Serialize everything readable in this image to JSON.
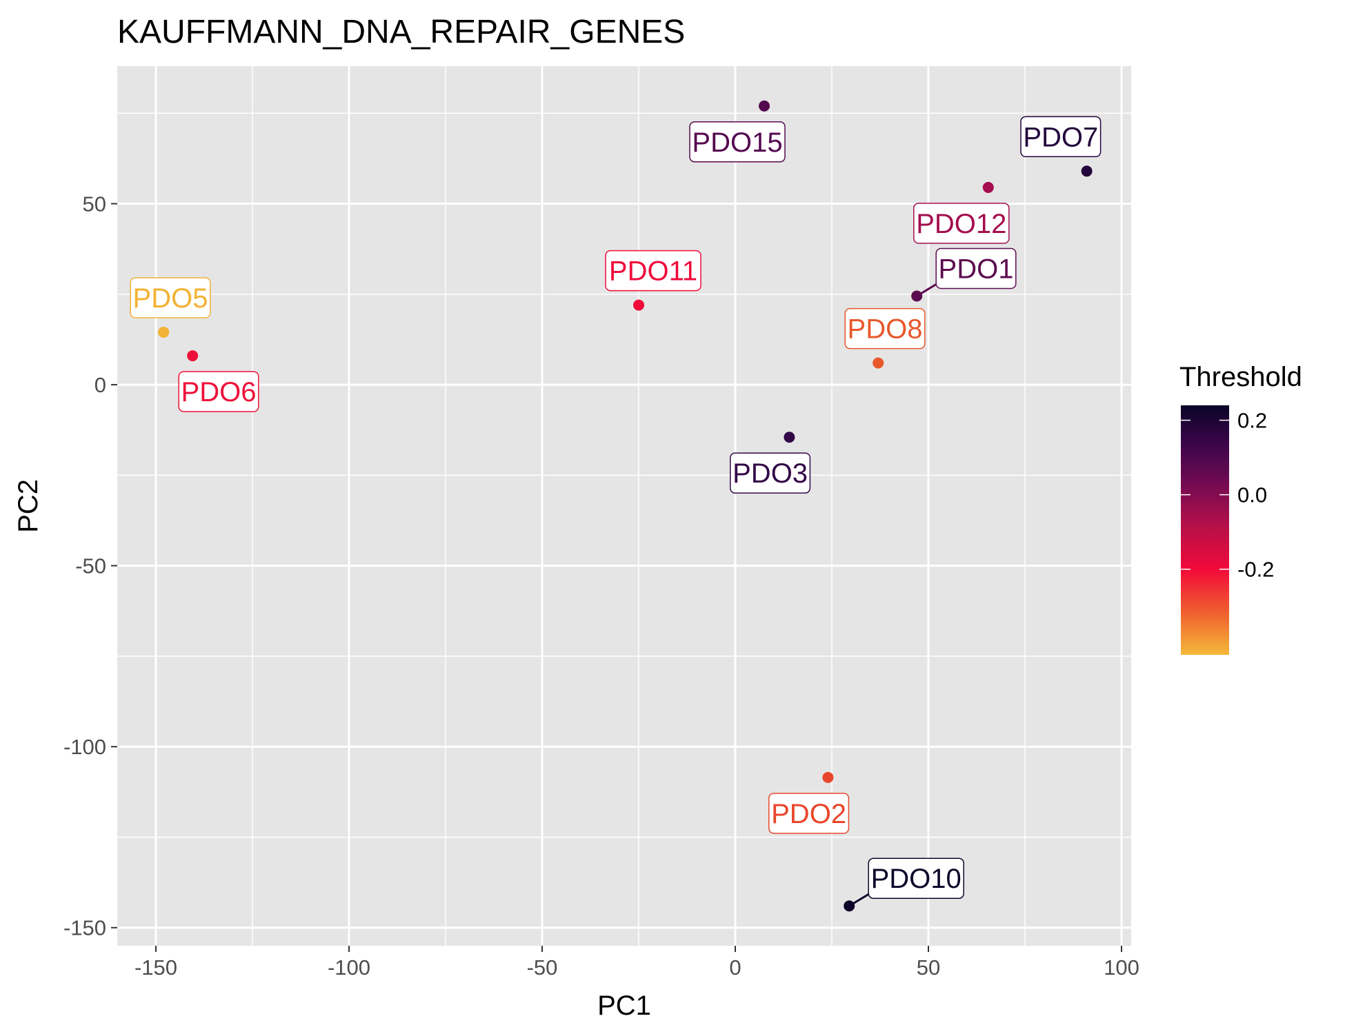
{
  "chart_data": {
    "type": "scatter",
    "title": "KAUFFMANN_DNA_REPAIR_GENES",
    "xlabel": "PC1",
    "ylabel": "PC2",
    "xlim": [
      -160,
      102.5
    ],
    "ylim": [
      -155,
      88
    ],
    "x_ticks": [
      -150,
      -100,
      -50,
      0,
      50,
      100
    ],
    "x_tick_labels": [
      "-150",
      "-100",
      "-50",
      "0",
      "50",
      "100"
    ],
    "y_ticks": [
      -150,
      -100,
      -50,
      0,
      50
    ],
    "y_tick_labels": [
      "-150",
      "-100",
      "-50",
      "0",
      "50"
    ],
    "grid": true,
    "legend": {
      "title": "Threshold",
      "placement": "right",
      "range": [
        -0.43,
        0.24
      ],
      "ticks": [
        0.2,
        0.0,
        -0.2
      ],
      "tick_labels": [
        "0.2",
        "0.0",
        "-0.2"
      ],
      "gradient": [
        {
          "value": -0.43,
          "color": "#f4b93a"
        },
        {
          "value": -0.32,
          "color": "#f0622f"
        },
        {
          "value": -0.2,
          "color": "#f20a3a"
        },
        {
          "value": -0.08,
          "color": "#b3104a"
        },
        {
          "value": 0.04,
          "color": "#6d0a52"
        },
        {
          "value": 0.14,
          "color": "#3a0549"
        },
        {
          "value": 0.24,
          "color": "#0a0528"
        }
      ]
    },
    "points": [
      {
        "label": "PDO1",
        "x": 47,
        "y": 24.5,
        "color": "#5c0b4f",
        "label_pos": "upper-right",
        "connector": true
      },
      {
        "label": "PDO2",
        "x": 24,
        "y": -108.5,
        "color": "#e8462c",
        "label_pos": "below-left",
        "connector": false
      },
      {
        "label": "PDO3",
        "x": 14,
        "y": -14.5,
        "color": "#320847",
        "label_pos": "below-left",
        "connector": false
      },
      {
        "label": "PDO5",
        "x": -148,
        "y": 14.5,
        "color": "#f3b233",
        "label_pos": "above-right",
        "connector": false
      },
      {
        "label": "PDO6",
        "x": -140.5,
        "y": 8,
        "color": "#ee1139",
        "label_pos": "below-right",
        "connector": false
      },
      {
        "label": "PDO7",
        "x": 91,
        "y": 59,
        "color": "#23063c",
        "label_pos": "above-left",
        "connector": false
      },
      {
        "label": "PDO8",
        "x": 37,
        "y": 6,
        "color": "#e8582c",
        "label_pos": "above-right",
        "connector": false
      },
      {
        "label": "PDO10",
        "x": 29.5,
        "y": -144,
        "color": "#0e0529",
        "label_pos": "upper-right",
        "connector": true
      },
      {
        "label": "PDO11",
        "x": -25,
        "y": 22,
        "color": "#ef0a3a",
        "label_pos": "above-right",
        "connector": false
      },
      {
        "label": "PDO12",
        "x": 65.5,
        "y": 54.5,
        "color": "#a40e4e",
        "label_pos": "below-left",
        "connector": false
      },
      {
        "label": "PDO15",
        "x": 7.5,
        "y": 77,
        "color": "#55094f",
        "label_pos": "below-left",
        "connector": false
      }
    ]
  }
}
